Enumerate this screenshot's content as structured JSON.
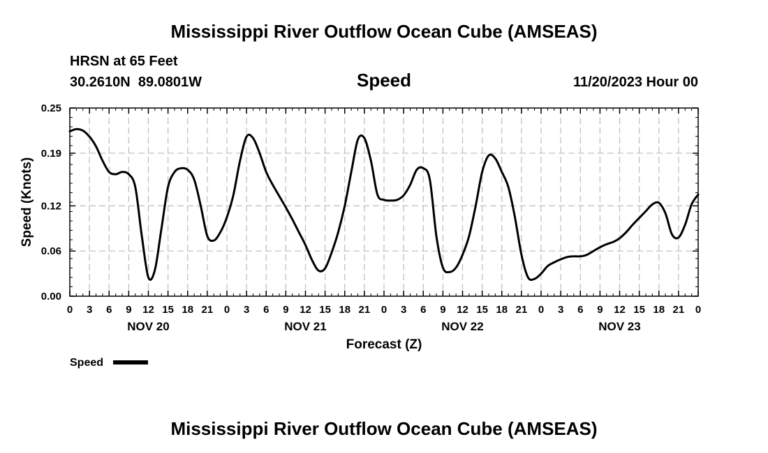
{
  "page": {
    "title_top": "Mississippi River Outflow Ocean Cube (AMSEAS)",
    "title_bottom": "Mississippi River Outflow Ocean Cube (AMSEAS)",
    "station": "HRSN at 65 Feet",
    "coords": "30.2610N  89.0801W",
    "variable": "Speed",
    "date": "11/20/2023 Hour 00"
  },
  "chart_data": {
    "type": "line",
    "title": "Speed",
    "xlabel": "Forecast (Z)",
    "ylabel": "Speed (Knots)",
    "xlim": [
      0,
      96
    ],
    "ylim": [
      0,
      0.25
    ],
    "yticks": [
      0.0,
      0.06,
      0.12,
      0.19,
      0.25
    ],
    "ytick_labels": [
      "0.00",
      "0.06",
      "0.12",
      "0.19",
      "0.25"
    ],
    "xtick_labels": [
      "0",
      "3",
      "6",
      "9",
      "12",
      "15",
      "18",
      "21",
      "0",
      "3",
      "6",
      "9",
      "12",
      "15",
      "18",
      "21",
      "0",
      "3",
      "6",
      "9",
      "12",
      "15",
      "18",
      "21",
      "0",
      "3",
      "6",
      "9",
      "12",
      "15",
      "18",
      "21",
      "0"
    ],
    "day_labels": [
      {
        "label": "NOV 20",
        "hour": 12
      },
      {
        "label": "NOV 21",
        "hour": 36
      },
      {
        "label": "NOV 22",
        "hour": 60
      },
      {
        "label": "NOV 23",
        "hour": 84
      }
    ],
    "grid": true,
    "legend": {
      "label": "Speed",
      "position": "bottom-left"
    },
    "series": [
      {
        "name": "Speed",
        "color": "#000000",
        "x": [
          0,
          1,
          2,
          3,
          4,
          5,
          6,
          7,
          8,
          9,
          10,
          11,
          12,
          13,
          14,
          15,
          16,
          17,
          18,
          19,
          20,
          21,
          22,
          23,
          24,
          25,
          26,
          27,
          28,
          29,
          30,
          31,
          32,
          33,
          34,
          35,
          36,
          37,
          38,
          39,
          40,
          41,
          42,
          43,
          44,
          45,
          46,
          47,
          48,
          49,
          50,
          51,
          52,
          53,
          54,
          55,
          56,
          57,
          58,
          59,
          60,
          61,
          62,
          63,
          64,
          65,
          66,
          67,
          68,
          69,
          70,
          71,
          72,
          73,
          74,
          75,
          76,
          77,
          78,
          79,
          80,
          81,
          82,
          83,
          84,
          85,
          86,
          87,
          88,
          89,
          90,
          91,
          92,
          93,
          94,
          95,
          96
        ],
        "values": [
          0.219,
          0.222,
          0.22,
          0.212,
          0.199,
          0.18,
          0.165,
          0.162,
          0.165,
          0.162,
          0.145,
          0.08,
          0.025,
          0.035,
          0.09,
          0.145,
          0.165,
          0.17,
          0.168,
          0.155,
          0.12,
          0.08,
          0.074,
          0.085,
          0.105,
          0.135,
          0.18,
          0.212,
          0.21,
          0.19,
          0.165,
          0.148,
          0.133,
          0.118,
          0.102,
          0.085,
          0.068,
          0.048,
          0.034,
          0.037,
          0.058,
          0.085,
          0.12,
          0.165,
          0.208,
          0.21,
          0.18,
          0.135,
          0.128,
          0.127,
          0.128,
          0.134,
          0.148,
          0.168,
          0.17,
          0.155,
          0.08,
          0.038,
          0.032,
          0.038,
          0.055,
          0.08,
          0.12,
          0.165,
          0.187,
          0.183,
          0.165,
          0.145,
          0.105,
          0.055,
          0.025,
          0.023,
          0.03,
          0.04,
          0.045,
          0.049,
          0.052,
          0.053,
          0.053,
          0.055,
          0.06,
          0.065,
          0.069,
          0.072,
          0.077,
          0.085,
          0.095,
          0.104,
          0.113,
          0.122,
          0.124,
          0.11,
          0.082,
          0.078,
          0.095,
          0.122,
          0.135
        ]
      }
    ]
  }
}
